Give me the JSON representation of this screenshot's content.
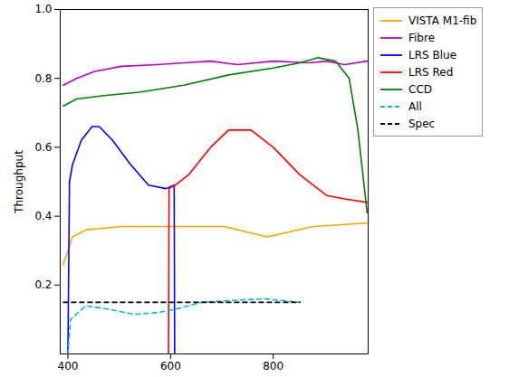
{
  "chart_data": {
    "type": "line",
    "y_label": "Throughput",
    "xlim": [
      385,
      985
    ],
    "xticks": [
      400,
      600,
      800
    ],
    "ylim": [
      0,
      1
    ],
    "yticks": [
      {
        "value": 0.2,
        "label": "0.2"
      },
      {
        "value": 0.4,
        "label": "0.4"
      },
      {
        "value": 0.6,
        "label": "0.6"
      },
      {
        "value": 0.8,
        "label": "0.8"
      },
      {
        "value": 1.0,
        "label": "1.0"
      }
    ],
    "legend": "right",
    "series": [
      {
        "name": "VISTA M1-fib",
        "color": "#ffa500",
        "line_style": "solid",
        "x": [
          391,
          409,
          435,
          504,
          704,
          788,
          878,
          983
        ],
        "values": [
          0.26,
          0.34,
          0.36,
          0.37,
          0.37,
          0.34,
          0.37,
          0.38
        ]
      },
      {
        "name": "Fibre",
        "color": "#bf00bf",
        "line_style": "solid",
        "x": [
          391,
          417,
          452,
          504,
          574,
          626,
          678,
          730,
          800,
          870,
          904,
          939,
          983
        ],
        "values": [
          0.78,
          0.8,
          0.82,
          0.835,
          0.84,
          0.845,
          0.85,
          0.84,
          0.85,
          0.845,
          0.85,
          0.84,
          0.85
        ]
      },
      {
        "name": "LRS Blue",
        "color": "#0000ff",
        "line_style": "solid",
        "x": [
          400,
          403,
          409,
          426,
          447,
          461,
          487,
          522,
          557,
          591,
          607,
          608
        ],
        "values": [
          0,
          0.5,
          0.55,
          0.62,
          0.66,
          0.66,
          0.62,
          0.55,
          0.49,
          0.48,
          0.49,
          0
        ]
      },
      {
        "name": "LRS Red",
        "color": "#ff0000",
        "line_style": "solid",
        "x": [
          596,
          597,
          609,
          635,
          678,
          713,
          757,
          800,
          852,
          904,
          939,
          983
        ],
        "values": [
          0,
          0.48,
          0.49,
          0.52,
          0.6,
          0.65,
          0.65,
          0.6,
          0.52,
          0.46,
          0.45,
          0.44
        ]
      },
      {
        "name": "CCD",
        "color": "#008000",
        "line_style": "solid",
        "x": [
          391,
          417,
          470,
          539,
          626,
          713,
          800,
          852,
          887,
          922,
          948,
          965,
          983
        ],
        "values": [
          0.72,
          0.74,
          0.75,
          0.76,
          0.78,
          0.81,
          0.83,
          0.845,
          0.86,
          0.85,
          0.8,
          0.65,
          0.41
        ]
      },
      {
        "name": "All",
        "color": "#00bfbf",
        "line_style": "dashed",
        "x": [
          400,
          405,
          435,
          478,
          530,
          574,
          609,
          661,
          713,
          783,
          852
        ],
        "values": [
          0.0,
          0.1,
          0.14,
          0.13,
          0.115,
          0.12,
          0.13,
          0.15,
          0.155,
          0.16,
          0.15
        ]
      },
      {
        "name": "Spec",
        "color": "#000000",
        "line_style": "dashed",
        "x": [
          391,
          852
        ],
        "values": [
          0.15,
          0.15
        ]
      }
    ]
  }
}
